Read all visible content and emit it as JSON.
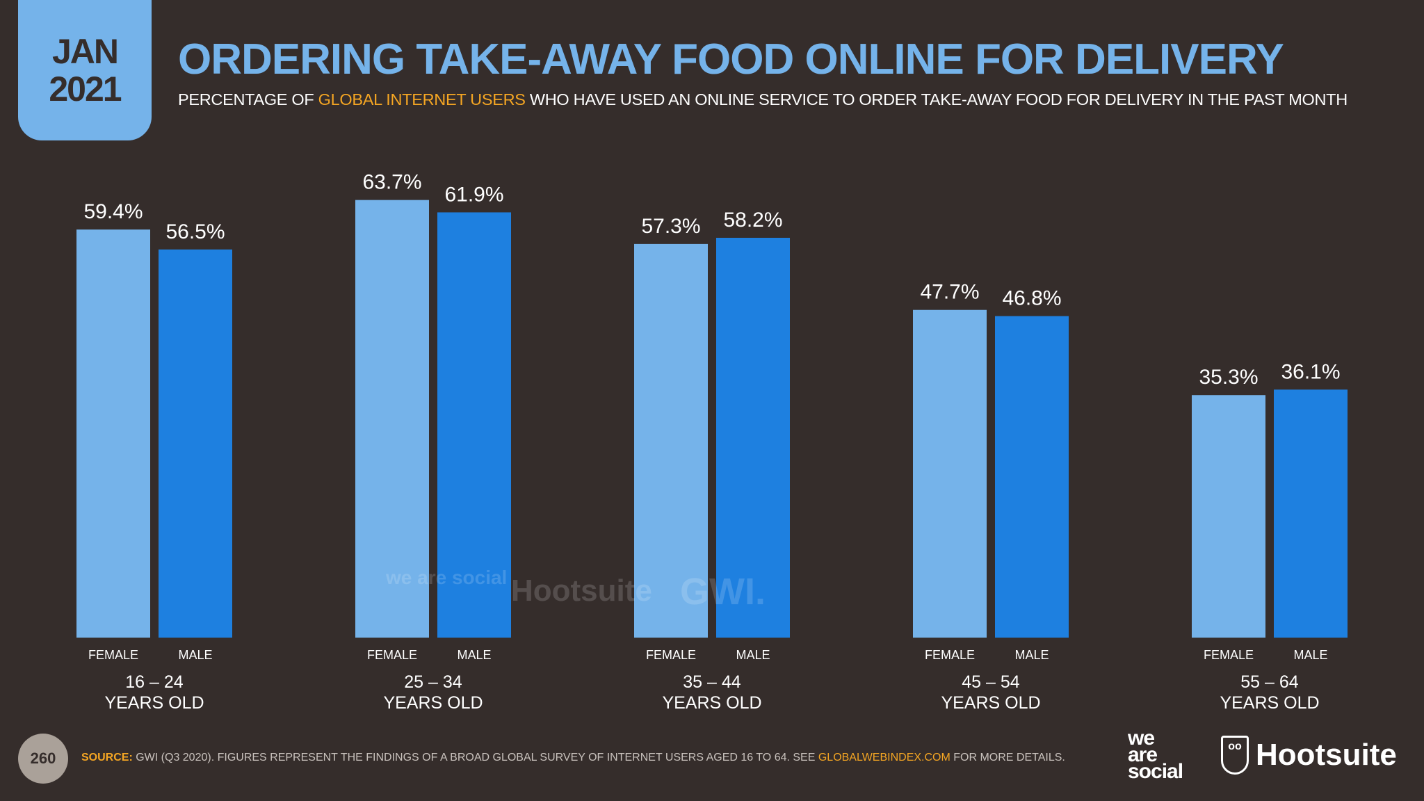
{
  "header": {
    "date_month": "JAN",
    "date_year": "2021",
    "title": "ORDERING TAKE-AWAY FOOD ONLINE FOR DELIVERY",
    "subtitle_pre": "PERCENTAGE OF ",
    "subtitle_highlight": "GLOBAL INTERNET USERS",
    "subtitle_post": " WHO HAVE USED AN ONLINE SERVICE TO ORDER TAKE-AWAY FOOD FOR DELIVERY IN THE PAST MONTH"
  },
  "chart_data": {
    "type": "bar",
    "title": "ORDERING TAKE-AWAY FOOD ONLINE FOR DELIVERY",
    "categories": [
      [
        "16 – 24",
        "YEARS OLD"
      ],
      [
        "25 – 34",
        "YEARS OLD"
      ],
      [
        "35 – 44",
        "YEARS OLD"
      ],
      [
        "45 – 54",
        "YEARS OLD"
      ],
      [
        "55 – 64",
        "YEARS OLD"
      ]
    ],
    "series": [
      {
        "name": "FEMALE",
        "color": "#75b3ea",
        "values": [
          59.4,
          63.7,
          57.3,
          47.7,
          35.3
        ]
      },
      {
        "name": "MALE",
        "color": "#1e80e0",
        "values": [
          56.5,
          61.9,
          58.2,
          46.8,
          36.1
        ]
      }
    ],
    "value_suffix": "%",
    "ylim": [
      0,
      70
    ],
    "grid": false,
    "xlabel": "",
    "ylabel": ""
  },
  "watermark": {
    "was": "we are social",
    "hootsuite": "Hootsuite",
    "gwi": "GWI."
  },
  "footer": {
    "page": "260",
    "source_label": "SOURCE:",
    "source_text": " GWI (Q3 2020). FIGURES REPRESENT THE FINDINGS OF A BROAD GLOBAL SURVEY OF INTERNET USERS AGED 16 TO 64. SEE ",
    "source_link": "GLOBALWEBINDEX.COM",
    "source_end": " FOR MORE DETAILS.",
    "logo_was": [
      "we",
      "are",
      "social"
    ],
    "logo_hootsuite": "Hootsuite"
  }
}
